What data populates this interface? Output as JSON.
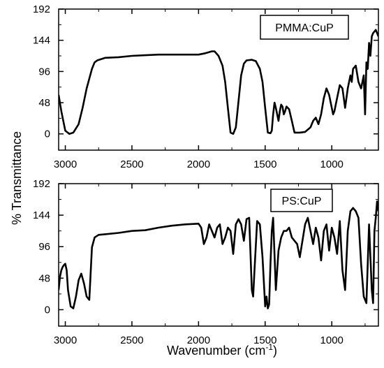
{
  "figure": {
    "ylabel": "% Transmittance",
    "xlabel_main": "Wavenumber (cm",
    "xlabel_sup": "-1",
    "xlabel_end": ")"
  },
  "chart_data": [
    {
      "type": "line",
      "legend": "PMMA:CuP",
      "legend_placement": "top-right",
      "xlim": [
        3050,
        650
      ],
      "ylim": [
        -25,
        192
      ],
      "x_ticks": [
        3000,
        2500,
        2000,
        1500,
        1000
      ],
      "y_ticks": [
        0,
        48,
        96,
        144,
        192
      ],
      "grid": false,
      "series": [
        {
          "x": [
            3050,
            3030,
            3000,
            2970,
            2940,
            2900,
            2870,
            2840,
            2800,
            2780,
            2760,
            2700,
            2600,
            2500,
            2400,
            2300,
            2200,
            2100,
            2000,
            1950,
            1900,
            1880,
            1850,
            1820,
            1800,
            1780,
            1760,
            1740,
            1720,
            1700,
            1680,
            1660,
            1640,
            1600,
            1570,
            1540,
            1520,
            1500,
            1480,
            1460,
            1450,
            1440,
            1430,
            1420,
            1400,
            1390,
            1380,
            1370,
            1360,
            1350,
            1340,
            1320,
            1300,
            1280,
            1260,
            1240,
            1200,
            1160,
            1140,
            1120,
            1100,
            1080,
            1060,
            1040,
            1020,
            1000,
            990,
            980,
            960,
            940,
            920,
            900,
            880,
            860,
            850,
            840,
            820,
            800,
            780,
            760,
            750,
            740,
            730,
            720,
            710,
            700,
            690,
            670,
            650
          ],
          "values": [
            60,
            35,
            5,
            0,
            2,
            15,
            40,
            70,
            100,
            110,
            113,
            117,
            118,
            120,
            121,
            122,
            122,
            122,
            122,
            124,
            127,
            127,
            120,
            105,
            80,
            40,
            2,
            0,
            10,
            50,
            90,
            108,
            113,
            114,
            112,
            100,
            80,
            40,
            2,
            1,
            5,
            30,
            48,
            40,
            20,
            35,
            45,
            42,
            30,
            35,
            42,
            38,
            20,
            2,
            2,
            2,
            3,
            10,
            20,
            25,
            15,
            30,
            55,
            70,
            60,
            40,
            30,
            35,
            55,
            75,
            70,
            40,
            70,
            90,
            80,
            100,
            105,
            80,
            70,
            90,
            30,
            110,
            100,
            140,
            120,
            150,
            155,
            160,
            150
          ]
        }
      ]
    },
    {
      "type": "line",
      "legend": "PS:CuP",
      "legend_placement": "top-right",
      "xlim": [
        3050,
        650
      ],
      "ylim": [
        -25,
        192
      ],
      "x_ticks": [
        3000,
        2500,
        2000,
        1500,
        1000
      ],
      "y_ticks": [
        0,
        48,
        96,
        144,
        192
      ],
      "grid": false,
      "series": [
        {
          "x": [
            3050,
            3040,
            3030,
            3020,
            3010,
            3000,
            2990,
            2980,
            2960,
            2940,
            2920,
            2900,
            2880,
            2860,
            2840,
            2820,
            2800,
            2780,
            2750,
            2700,
            2600,
            2500,
            2400,
            2300,
            2200,
            2100,
            2000,
            1980,
            1960,
            1940,
            1920,
            1900,
            1880,
            1860,
            1840,
            1820,
            1800,
            1780,
            1760,
            1740,
            1720,
            1700,
            1680,
            1660,
            1640,
            1620,
            1600,
            1590,
            1580,
            1560,
            1540,
            1520,
            1500,
            1490,
            1480,
            1470,
            1460,
            1450,
            1440,
            1420,
            1400,
            1380,
            1360,
            1340,
            1320,
            1300,
            1280,
            1260,
            1240,
            1220,
            1200,
            1180,
            1160,
            1140,
            1120,
            1100,
            1080,
            1060,
            1040,
            1020,
            1000,
            980,
            960,
            940,
            920,
            900,
            880,
            860,
            840,
            820,
            800,
            780,
            760,
            740,
            720,
            700,
            690,
            680,
            670,
            660,
            650
          ],
          "values": [
            30,
            50,
            60,
            65,
            68,
            70,
            60,
            30,
            5,
            2,
            20,
            45,
            55,
            40,
            20,
            15,
            95,
            110,
            114,
            115,
            117,
            120,
            121,
            125,
            128,
            130,
            131,
            125,
            100,
            110,
            130,
            120,
            110,
            125,
            130,
            100,
            110,
            125,
            120,
            85,
            130,
            138,
            130,
            105,
            138,
            140,
            30,
            20,
            60,
            135,
            130,
            80,
            5,
            20,
            2,
            8,
            70,
            120,
            140,
            30,
            90,
            110,
            120,
            120,
            125,
            110,
            105,
            100,
            80,
            105,
            130,
            140,
            120,
            100,
            125,
            110,
            75,
            120,
            130,
            90,
            125,
            110,
            85,
            135,
            60,
            30,
            120,
            150,
            155,
            150,
            140,
            70,
            20,
            10,
            130,
            30,
            10,
            120,
            140,
            165,
            150
          ]
        }
      ]
    }
  ]
}
